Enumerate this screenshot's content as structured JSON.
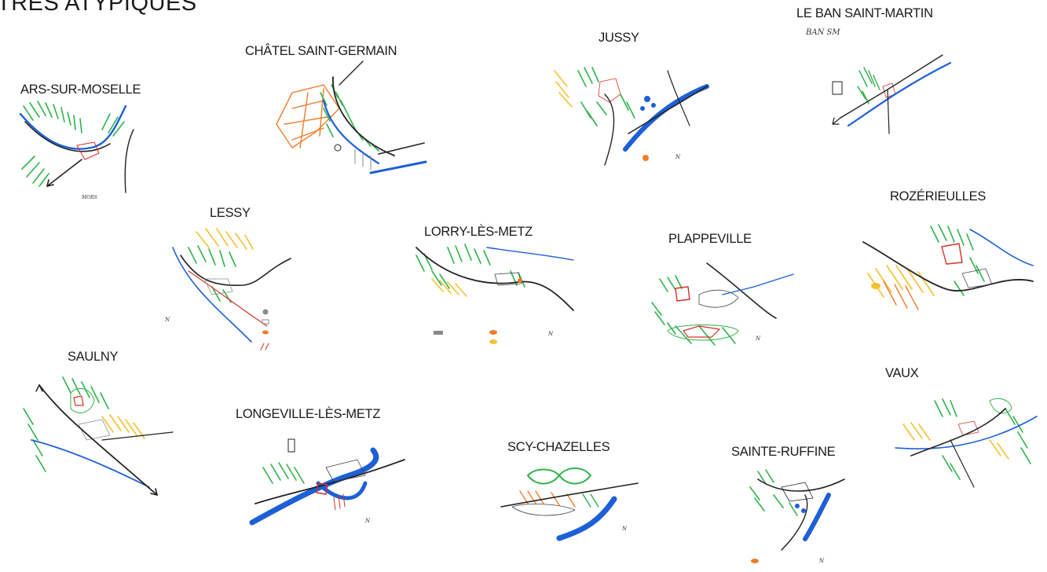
{
  "page": {
    "title": "TRÈS ATYPIQUES"
  },
  "colors": {
    "ink": "#1a1a1a",
    "river_blue": "#1d5fd6",
    "forest_green": "#2fb24a",
    "vine_yellow": "#f2c230",
    "orange": "#f07c2a",
    "red": "#d6302a",
    "grey": "#8a8a8a"
  },
  "sketches": [
    {
      "id": "ars-sur-moselle",
      "label": "ARS-SUR-MOSELLE"
    },
    {
      "id": "chatel-saint-germain",
      "label": "CHÂTEL SAINT-GERMAIN"
    },
    {
      "id": "jussy",
      "label": "JUSSY"
    },
    {
      "id": "le-ban-saint-martin",
      "label": "LE BAN SAINT-MARTIN",
      "handwriting": [
        "BAN SM"
      ]
    },
    {
      "id": "lessy",
      "label": "LESSY"
    },
    {
      "id": "lorry-les-metz",
      "label": "LORRY-LÈS-METZ"
    },
    {
      "id": "plappeville",
      "label": "PLAPPEVILLE"
    },
    {
      "id": "rozerieulles",
      "label": "ROZÉRIEULLES"
    },
    {
      "id": "saulny",
      "label": "SAULNY"
    },
    {
      "id": "longeville-les-metz",
      "label": "LONGEVILLE-LÈS-METZ"
    },
    {
      "id": "scy-chazelles",
      "label": "SCY-CHAZELLES"
    },
    {
      "id": "sainte-ruffine",
      "label": "SAINTE-RUFFINE"
    },
    {
      "id": "vaux",
      "label": "VAUX"
    }
  ],
  "legend_marks": {
    "north": "N"
  }
}
